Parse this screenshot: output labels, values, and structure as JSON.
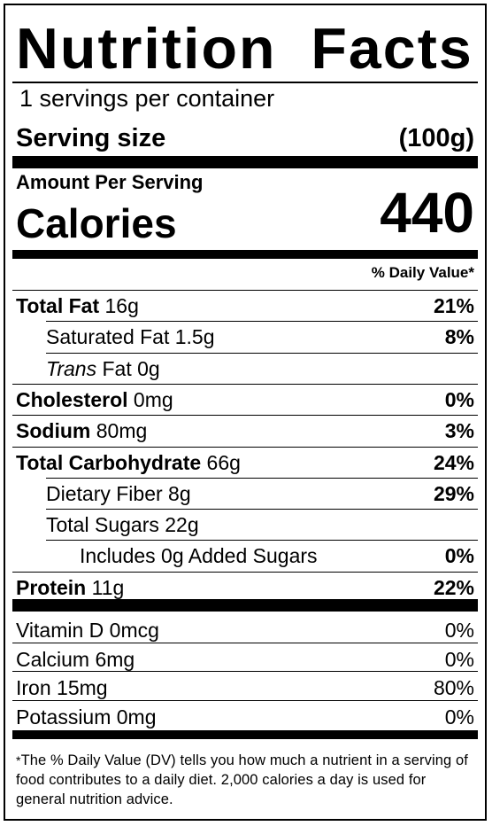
{
  "title": "Nutrition Facts",
  "servings_per_container": "1 servings per container",
  "serving_size": {
    "label": "Serving size",
    "value": "(100g)"
  },
  "amount_per_serving": "Amount Per Serving",
  "calories": {
    "label": "Calories",
    "value": "440"
  },
  "daily_value_header": "% Daily Value*",
  "nutrients": [
    {
      "name": "Total Fat",
      "amount": "16g",
      "dv": "21%",
      "bold": true,
      "indent": 0
    },
    {
      "name": "Saturated Fat",
      "amount": "1.5g",
      "dv": "8%",
      "bold": false,
      "indent": 1
    },
    {
      "name": "Trans",
      "name_suffix": "Fat",
      "amount": "0g",
      "dv": "",
      "bold": false,
      "indent": 1,
      "italic_prefix": true
    },
    {
      "name": "Cholesterol",
      "amount": "0mg",
      "dv": "0%",
      "bold": true,
      "indent": 0
    },
    {
      "name": "Sodium",
      "amount": "80mg",
      "dv": "3%",
      "bold": true,
      "indent": 0
    },
    {
      "name": "Total Carbohydrate",
      "amount": "66g",
      "dv": "24%",
      "bold": true,
      "indent": 0
    },
    {
      "name": "Dietary Fiber",
      "amount": "8g",
      "dv": "29%",
      "bold": false,
      "indent": 1
    },
    {
      "name": "Total Sugars",
      "amount": "22g",
      "dv": "",
      "bold": false,
      "indent": 1
    },
    {
      "name": "Includes 0g Added Sugars",
      "amount": "",
      "dv": "0%",
      "bold": false,
      "indent": 2
    },
    {
      "name": "Protein",
      "amount": "11g",
      "dv": "22%",
      "bold": true,
      "indent": 0
    }
  ],
  "vitamins": [
    {
      "name": "Vitamin D",
      "amount": "0mcg",
      "dv": "0%"
    },
    {
      "name": "Calcium",
      "amount": "6mg",
      "dv": "0%"
    },
    {
      "name": "Iron",
      "amount": "15mg",
      "dv": "80%"
    },
    {
      "name": "Potassium",
      "amount": "0mg",
      "dv": "0%"
    }
  ],
  "footnote_star": "*",
  "footnote": "The % Daily Value (DV) tells you how much a nutrient in a serving of food contributes to a daily diet. 2,000 calories a day is used for general nutrition advice."
}
